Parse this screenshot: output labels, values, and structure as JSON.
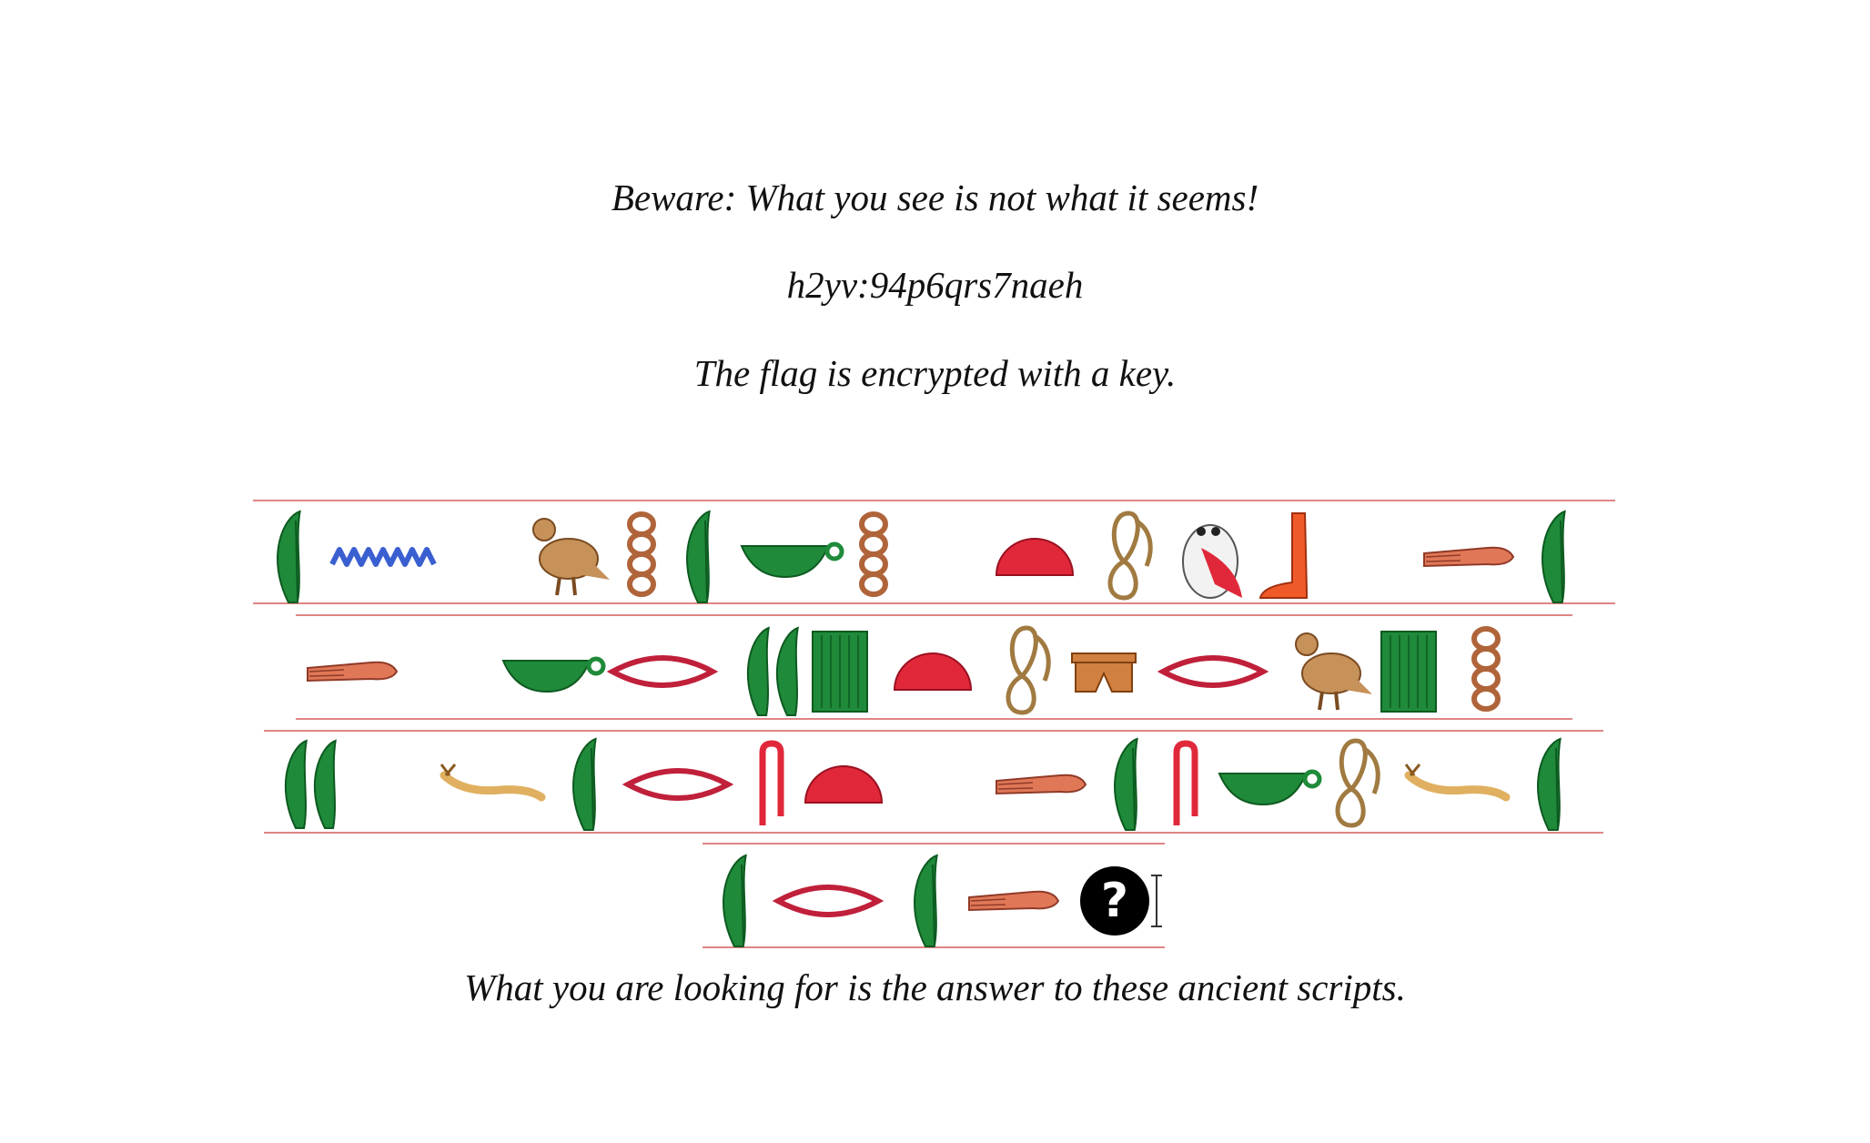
{
  "warning": "Beware: What you see is not what it seems!",
  "cipher": "h2yv:94p6qrs7naeh",
  "hint": "The flag is encrypted with a key.",
  "footer": "What you are looking for is the answer to these ancient scripts.",
  "colors": {
    "green": "#1f8a3a",
    "red": "#e0283a",
    "brown": "#b0643a",
    "tan": "#c7915a",
    "blue": "#3a5fd0",
    "guide": "#e08585"
  },
  "hieroglyph_rows": [
    [
      "reed",
      "water",
      "blank",
      "vulture",
      "twisted-flax",
      "reed",
      "basket",
      "twisted-flax",
      "blank",
      "bread",
      "rope-loop",
      "owl",
      "leg",
      "blank",
      "forearm",
      "reed"
    ],
    [
      "forearm",
      "blank",
      "basket",
      "mouth",
      "double-reed",
      "pool",
      "bread",
      "rope-loop",
      "stool",
      "mouth",
      "vulture",
      "pool",
      "twisted-flax"
    ],
    [
      "double-reed",
      "blank",
      "horned-viper",
      "reed",
      "mouth",
      "folded-cloth",
      "bread",
      "blank",
      "forearm",
      "reed",
      "folded-cloth",
      "basket",
      "rope-loop",
      "horned-viper",
      "reed"
    ],
    [
      "reed",
      "mouth",
      "reed",
      "forearm",
      "question-mark"
    ]
  ]
}
